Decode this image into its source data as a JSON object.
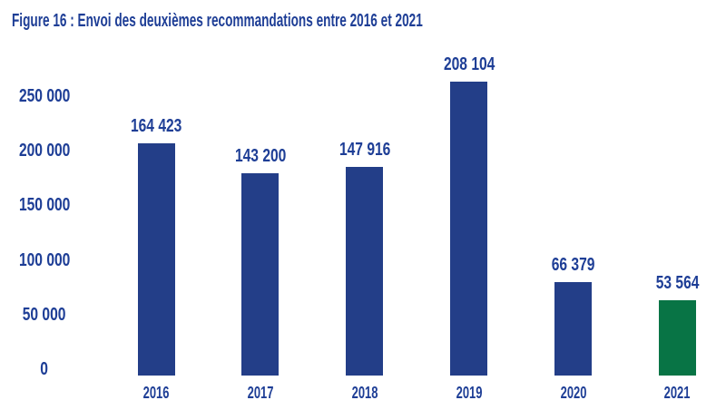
{
  "title": "Figure 16 : Envoi des deuxièmes recommandations entre 2016 et 2021",
  "colors": {
    "text_navy": "#1e3e96",
    "bar_blue": "#233e88",
    "bar_green": "#087445",
    "background": "#ffffff"
  },
  "chart_data": {
    "type": "bar",
    "title": "Figure 16 : Envoi des deuxièmes recommandations entre 2016 et 2021",
    "categories": [
      "2016",
      "2017",
      "2018",
      "2019",
      "2020",
      "2021"
    ],
    "values": [
      164423,
      143200,
      147916,
      208104,
      66379,
      53564
    ],
    "value_labels": [
      "164 423",
      "143 200",
      "147 916",
      "208 104",
      "66 379",
      "53 564"
    ],
    "bar_colors": [
      "#233e88",
      "#233e88",
      "#233e88",
      "#233e88",
      "#233e88",
      "#087445"
    ],
    "y_axis_ticks": [
      "250 000",
      "200 000",
      "150 000",
      "100 000",
      "50 000",
      "0"
    ],
    "ylim": [
      0,
      250000
    ],
    "xlabel": "",
    "ylabel": "",
    "grid": false,
    "legend": "none",
    "value_labels_position": "above-bars"
  }
}
